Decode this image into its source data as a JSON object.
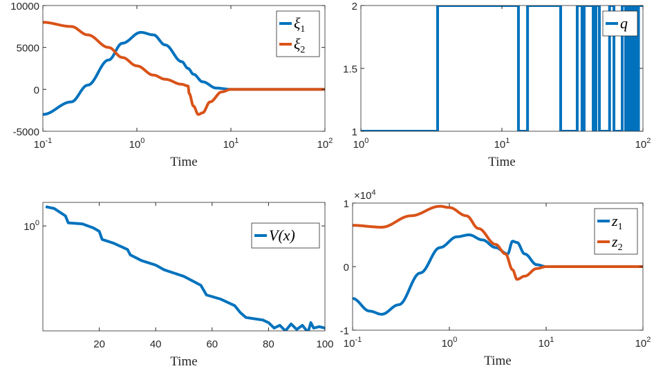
{
  "chart_data": [
    {
      "type": "line",
      "xscale": "log",
      "xlim": [
        0.1,
        100
      ],
      "ylim": [
        -5000,
        10000
      ],
      "xlabel": "Time",
      "xticks": [
        "10^-1",
        "10^0",
        "10^1",
        "10^2"
      ],
      "yticks": [
        -5000,
        0,
        5000,
        10000
      ],
      "legend": "top-right",
      "series": [
        {
          "name": "ξ1",
          "color": "#0072BD",
          "x": [
            0.1,
            0.2,
            0.3,
            0.5,
            0.7,
            1.1,
            1.5,
            2,
            3,
            3.5,
            4,
            5,
            7,
            10,
            100
          ],
          "y": [
            -3000,
            -1500,
            500,
            3500,
            5500,
            6800,
            6500,
            5300,
            3300,
            2500,
            1800,
            900,
            150,
            0,
            0
          ]
        },
        {
          "name": "ξ2",
          "color": "#D95319",
          "x": [
            0.1,
            0.2,
            0.3,
            0.5,
            0.7,
            1,
            1.5,
            2,
            3,
            3.5,
            3.6,
            4,
            4.5,
            5,
            6,
            8,
            10,
            100
          ],
          "y": [
            8000,
            7500,
            6500,
            5000,
            3800,
            2800,
            1700,
            1200,
            600,
            400,
            -500,
            -2000,
            -3000,
            -2800,
            -1500,
            -300,
            0,
            0
          ]
        }
      ]
    },
    {
      "type": "line",
      "step": true,
      "xscale": "log",
      "xlim": [
        1,
        100
      ],
      "ylim": [
        1,
        2
      ],
      "xlabel": "Time",
      "xticks": [
        "10^0",
        "10^1",
        "10^2"
      ],
      "yticks": [
        "1",
        "1.5",
        "2"
      ],
      "legend": "top-right",
      "series": [
        {
          "name": "q",
          "color": "#0072BD",
          "switch_times": [
            3.5,
            13.1,
            15.2,
            26.1,
            34.2,
            37,
            38.3,
            44.4,
            46.4,
            49.1,
            58,
            62.3,
            71.3,
            75.4,
            78,
            80,
            81.6,
            84.4,
            86,
            88,
            89.5,
            91,
            93
          ],
          "initial": 1
        }
      ]
    },
    {
      "type": "line",
      "yscale": "log",
      "xlim": [
        0,
        100
      ],
      "ylim": [
        0.37,
        1.25
      ],
      "xlabel": "Time",
      "xticks": [
        20,
        40,
        60,
        80,
        100
      ],
      "yticks": [
        "10^0"
      ],
      "legend": "top-right",
      "series": [
        {
          "name": "V(x)",
          "color": "#0072BD",
          "x": [
            1,
            4,
            8,
            9,
            14,
            18,
            20,
            21,
            25,
            30,
            31,
            35,
            40,
            43,
            50,
            56,
            58,
            63,
            68,
            70,
            72,
            78,
            80,
            82,
            84,
            86,
            88,
            90,
            92,
            94,
            95,
            96,
            98,
            100
          ],
          "y": [
            1.2,
            1.18,
            1.1,
            1.03,
            1.02,
            0.98,
            0.95,
            0.88,
            0.85,
            0.8,
            0.76,
            0.72,
            0.69,
            0.66,
            0.62,
            0.57,
            0.52,
            0.5,
            0.47,
            0.44,
            0.42,
            0.41,
            0.4,
            0.38,
            0.39,
            0.37,
            0.395,
            0.375,
            0.39,
            0.365,
            0.4,
            0.38,
            0.385,
            0.38
          ]
        }
      ]
    },
    {
      "type": "line",
      "xscale": "log",
      "xlim": [
        0.1,
        100
      ],
      "ylim": [
        -1,
        1
      ],
      "yexponent": "×10^4",
      "xlabel": "Time",
      "xticks": [
        "10^-1",
        "10^0",
        "10^1",
        "10^2"
      ],
      "yticks": [
        -1,
        0,
        1
      ],
      "legend": "top-right",
      "series": [
        {
          "name": "z1",
          "color": "#0072BD",
          "x": [
            0.1,
            0.15,
            0.2,
            0.3,
            0.5,
            0.8,
            1.2,
            1.6,
            2.2,
            3,
            4,
            4.5,
            5,
            6,
            8,
            10,
            100
          ],
          "y": [
            -0.5,
            -0.7,
            -0.75,
            -0.6,
            -0.1,
            0.3,
            0.47,
            0.5,
            0.42,
            0.3,
            0.2,
            0.4,
            0.38,
            0.2,
            0.03,
            0,
            0
          ]
        },
        {
          "name": "z2",
          "color": "#D95319",
          "x": [
            0.1,
            0.2,
            0.4,
            0.8,
            1,
            1.5,
            2,
            3,
            3.8,
            4.5,
            5,
            6,
            8,
            10,
            100
          ],
          "y": [
            0.65,
            0.62,
            0.8,
            0.95,
            0.93,
            0.8,
            0.6,
            0.35,
            0.2,
            -0.05,
            -0.2,
            -0.15,
            -0.03,
            0,
            0
          ]
        }
      ]
    }
  ]
}
